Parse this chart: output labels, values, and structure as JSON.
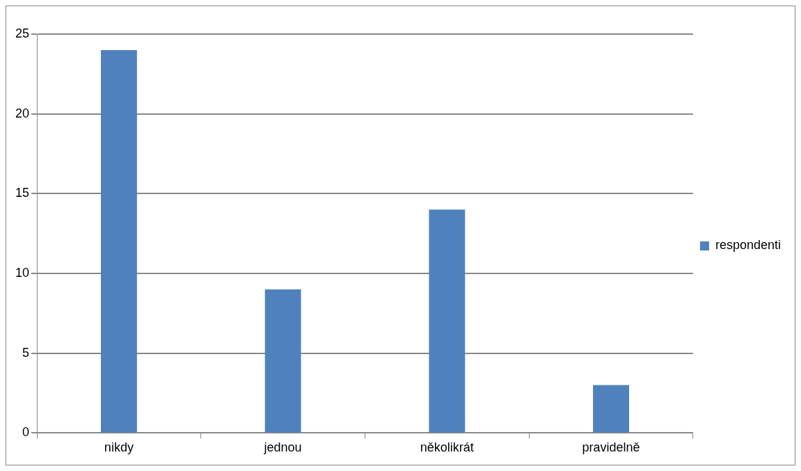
{
  "chart_data": {
    "type": "bar",
    "categories": [
      "nikdy",
      "jednou",
      "několikrát",
      "pravidelně"
    ],
    "series": [
      {
        "name": "respondenti",
        "color": "#4f81bd",
        "values": [
          24,
          9,
          14,
          3
        ]
      }
    ],
    "ylim": [
      0,
      25
    ],
    "yticks": [
      0,
      5,
      10,
      15,
      20,
      25
    ],
    "grid": "y",
    "legend": "right"
  }
}
